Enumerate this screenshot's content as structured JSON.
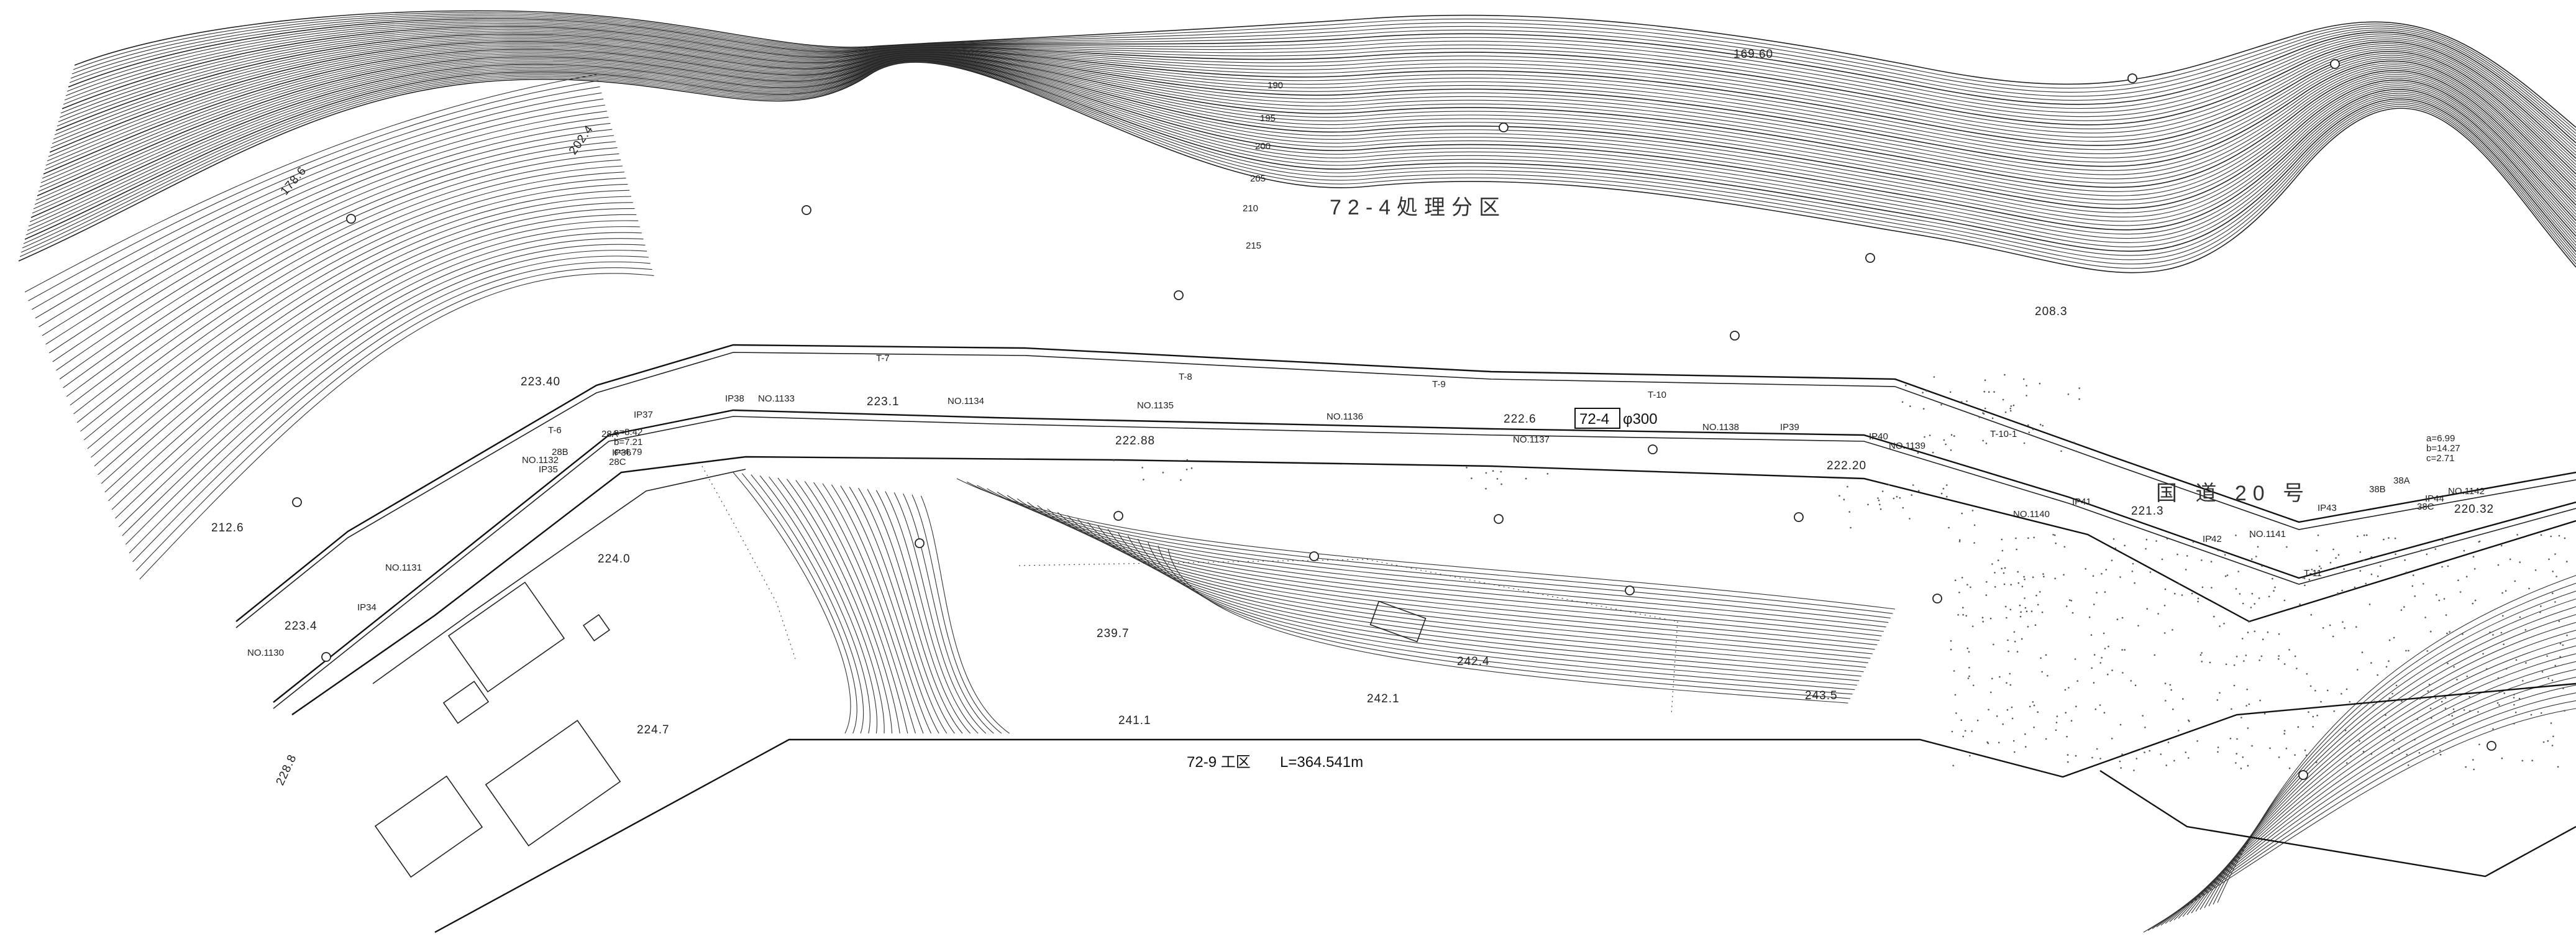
{
  "title": {
    "section": "72-9 工区",
    "length": "L=364.541m"
  },
  "district_label": "72-4処理分区",
  "road_label": "国 道 20 号",
  "pipe": {
    "id": "72-4",
    "size": "φ300"
  },
  "contour_labels": [
    "169.60",
    "190",
    "195",
    "200",
    "205",
    "210",
    "215",
    "208.3",
    "178.6",
    "202.4"
  ],
  "spot_elevations": [
    "223.40",
    "223.1",
    "222.6",
    "222.88",
    "222.20",
    "221.3",
    "220.32",
    "212.6",
    "223.4",
    "224.0",
    "224.7",
    "239.7",
    "242.4",
    "242.1",
    "241.1",
    "243.5",
    "228.8"
  ],
  "stations": [
    "NO.1130",
    "NO.1131",
    "NO.1132",
    "NO.1133",
    "NO.1134",
    "NO.1135",
    "NO.1136",
    "NO.1137",
    "NO.1138",
    "NO.1139",
    "NO.1140",
    "NO.1141",
    "NO.1142"
  ],
  "ips": [
    "IP34",
    "IP35",
    "IP36",
    "IP37",
    "IP38",
    "IP39",
    "IP40",
    "IP41",
    "IP42",
    "IP43",
    "IP44"
  ],
  "survey_points": [
    "T-6",
    "T-7",
    "T-8",
    "T-9",
    "T-10",
    "T-10-1",
    "T-11"
  ],
  "curves": [
    {
      "name": "28B",
      "c": "28C",
      "a": "a=8.42",
      "b": "b=7.21",
      "cc": "c=4.79"
    },
    {
      "name": "38B",
      "c": "38C",
      "a": "a=6.99",
      "b": "b=14.27",
      "cc": "c=2.71"
    }
  ],
  "bend_labels": [
    "28A",
    "38A"
  ]
}
